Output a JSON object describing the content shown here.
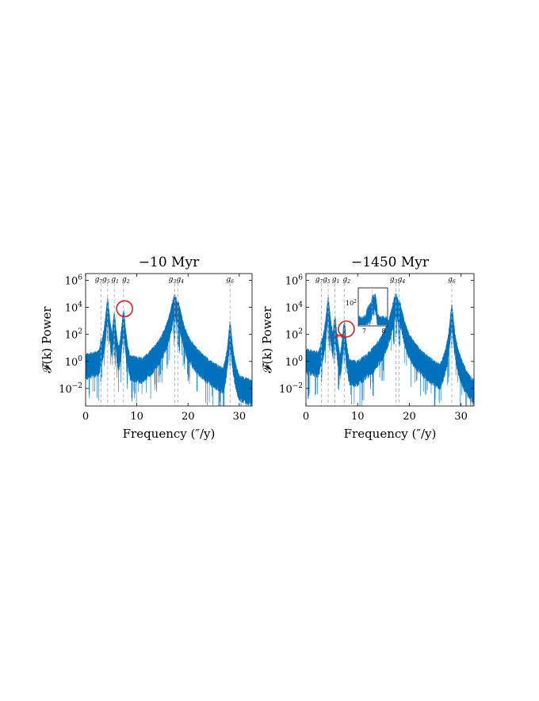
{
  "chart_data": [
    {
      "type": "line",
      "title": "−10 Myr",
      "xlabel": "Frequency (″/y)",
      "ylabel": "𝓕(k) Power",
      "xlim": [
        0,
        32.5
      ],
      "ylim_log10": [
        -3.3,
        6.5
      ],
      "x_ticks": [
        0,
        10,
        20,
        30
      ],
      "x_tick_labels": [
        "0",
        "10",
        "20",
        "30"
      ],
      "y_ticks_log10": [
        -2,
        0,
        2,
        4,
        6
      ],
      "y_tick_labels": [
        "10−2",
        "100",
        "102",
        "104",
        "106"
      ],
      "scale_y": "log",
      "color": "#0072BD",
      "frequency_markers": [
        {
          "label": "g7",
          "sub": "7",
          "x": 3.0
        },
        {
          "label": "g5",
          "sub": "5",
          "x": 4.3
        },
        {
          "label": "g1",
          "sub": "1",
          "x": 5.6
        },
        {
          "label": "g2",
          "sub": "2",
          "x": 7.4
        },
        {
          "label": "g3",
          "sub": "3",
          "x": 17.4
        },
        {
          "label": "g4",
          "sub": "4",
          "x": 18.0
        },
        {
          "label": "g6",
          "sub": "6",
          "x": 28.2
        }
      ],
      "peaks_log10": [
        {
          "x": 3.0,
          "y": 1.0
        },
        {
          "x": 4.3,
          "y": 4.0
        },
        {
          "x": 5.6,
          "y": 2.9
        },
        {
          "x": 7.4,
          "y": 3.1
        },
        {
          "x": 17.4,
          "y": 4.2
        },
        {
          "x": 18.0,
          "y": 3.7
        },
        {
          "x": 28.2,
          "y": 2.2
        }
      ],
      "annotations": [
        {
          "type": "circle",
          "x": 7.6,
          "y_log10": 3.9
        }
      ]
    },
    {
      "type": "line",
      "title": "−1450 Myr",
      "xlabel": "Frequency (″/y)",
      "ylabel": "𝓕(k) Power",
      "xlim": [
        0,
        32.5
      ],
      "ylim_log10": [
        -3.3,
        6.5
      ],
      "x_ticks": [
        0,
        10,
        20,
        30
      ],
      "x_tick_labels": [
        "0",
        "10",
        "20",
        "30"
      ],
      "y_ticks_log10": [
        -2,
        0,
        2,
        4,
        6
      ],
      "y_tick_labels": [
        "10−2",
        "100",
        "102",
        "104",
        "106"
      ],
      "scale_y": "log",
      "color": "#0072BD",
      "frequency_markers": [
        {
          "label": "g7",
          "sub": "7",
          "x": 3.0
        },
        {
          "label": "g5",
          "sub": "5",
          "x": 4.3
        },
        {
          "label": "g1",
          "sub": "1",
          "x": 5.6
        },
        {
          "label": "g2",
          "sub": "2",
          "x": 7.4
        },
        {
          "label": "g3",
          "sub": "3",
          "x": 17.4
        },
        {
          "label": "g4",
          "sub": "4",
          "x": 18.0
        },
        {
          "label": "g6",
          "sub": "6",
          "x": 28.2
        }
      ],
      "peaks_log10": [
        {
          "x": 3.0,
          "y": 1.0
        },
        {
          "x": 4.3,
          "y": 4.1
        },
        {
          "x": 5.6,
          "y": 2.7
        },
        {
          "x": 7.4,
          "y": 2.3
        },
        {
          "x": 17.4,
          "y": 4.3
        },
        {
          "x": 18.0,
          "y": 3.8
        },
        {
          "x": 28.2,
          "y": 3.5
        }
      ],
      "annotations": [
        {
          "type": "circle",
          "x": 7.8,
          "y_log10": 2.4
        },
        {
          "type": "double-arrow",
          "x_from": 5.6,
          "x_to": 7.4,
          "y_log10": 1.9
        }
      ],
      "inset": {
        "xlim": [
          6.7,
          8.2
        ],
        "x_ticks": [
          7,
          8
        ],
        "x_tick_labels": [
          "7",
          "8"
        ],
        "y_tick_label": "102"
      }
    }
  ]
}
